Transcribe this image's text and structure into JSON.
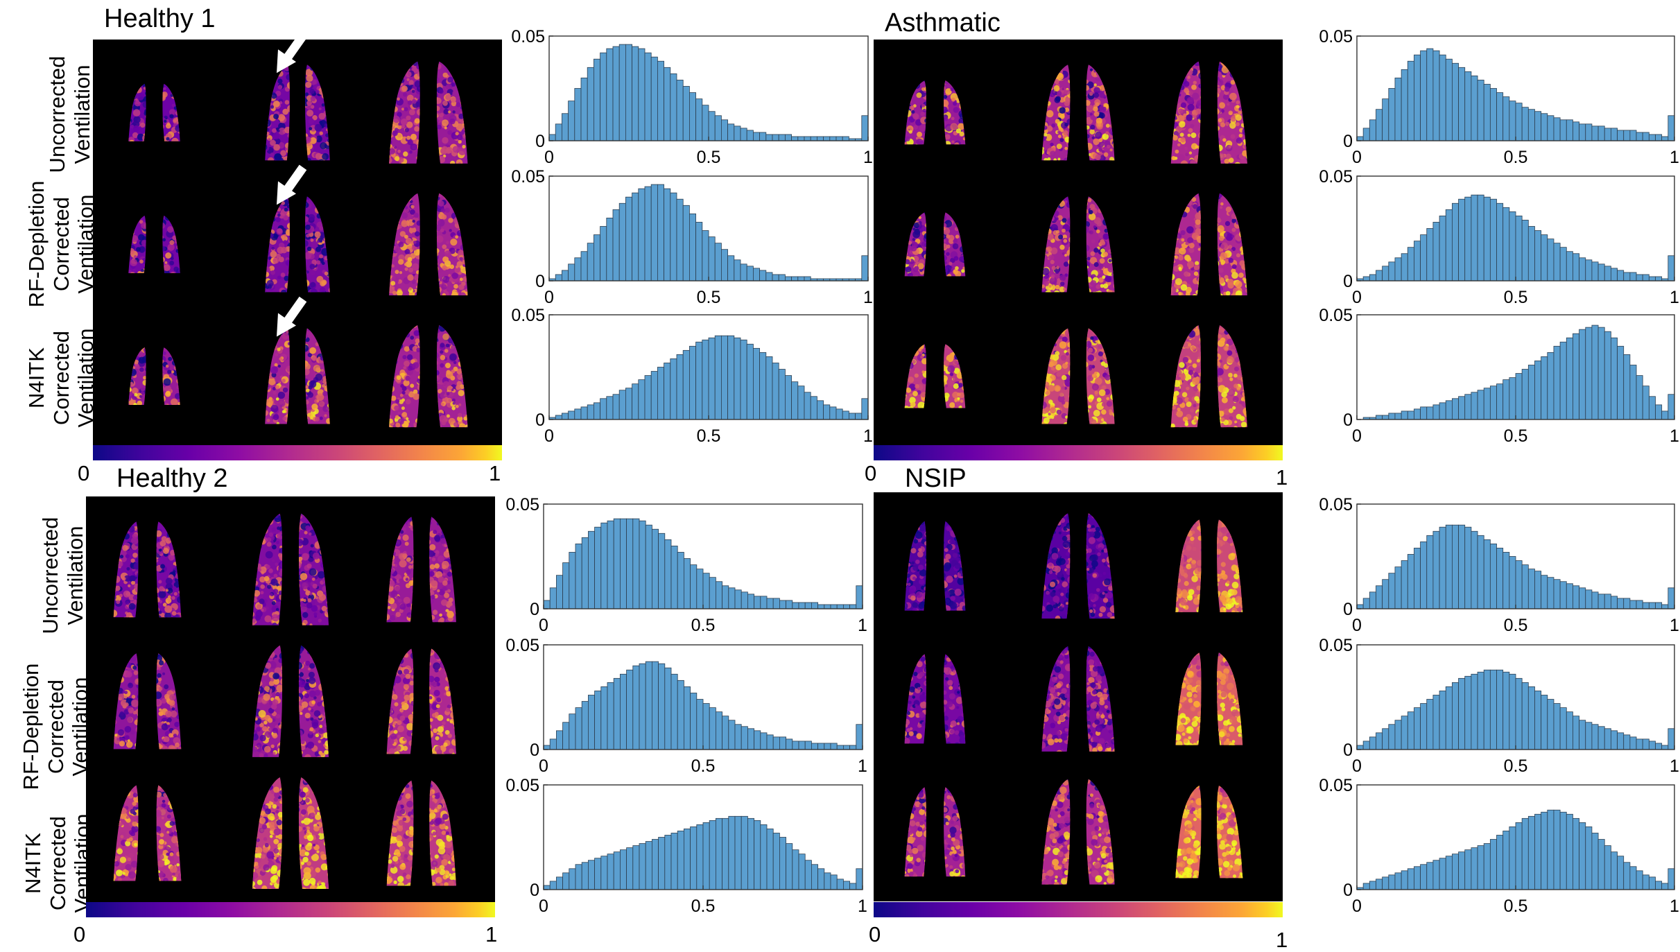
{
  "colormap": [
    "#0d0887",
    "#6a00a8",
    "#b12a90",
    "#e16462",
    "#fca636",
    "#f0f921"
  ],
  "bar_color": "#5b9fd0",
  "row_labels": {
    "uncorrected": [
      "Uncorrected",
      "Ventilation"
    ],
    "rf": [
      "RF-Depletion",
      "Corrected",
      "Ventilation"
    ],
    "n4": [
      "N4ITK",
      "Corrected",
      "Ventilation"
    ]
  },
  "colorbar": {
    "min_label": "0",
    "max_label": "1"
  },
  "panels": [
    {
      "title": "Healthy 1"
    },
    {
      "title": "Asthmatic"
    },
    {
      "title": "Healthy 2"
    },
    {
      "title": "NSIP"
    }
  ],
  "chart_data": [
    {
      "type": "bar",
      "panel": "Healthy 1",
      "row": "Uncorrected",
      "xticks": [
        "0",
        "0.5",
        "1"
      ],
      "yticks": [
        "0",
        "0.05"
      ],
      "xlim": [
        0,
        1
      ],
      "ylim": [
        0,
        0.05
      ],
      "values": [
        0.003,
        0.008,
        0.013,
        0.019,
        0.025,
        0.03,
        0.035,
        0.039,
        0.042,
        0.044,
        0.045,
        0.046,
        0.046,
        0.045,
        0.044,
        0.042,
        0.04,
        0.038,
        0.035,
        0.032,
        0.029,
        0.026,
        0.023,
        0.02,
        0.017,
        0.014,
        0.012,
        0.01,
        0.008,
        0.007,
        0.006,
        0.005,
        0.004,
        0.004,
        0.003,
        0.003,
        0.003,
        0.003,
        0.002,
        0.002,
        0.002,
        0.002,
        0.002,
        0.002,
        0.002,
        0.002,
        0.002,
        0.001,
        0.001,
        0.012
      ]
    },
    {
      "type": "bar",
      "panel": "Healthy 1",
      "row": "RF-Depletion Corrected",
      "xticks": [
        "0",
        "0.5",
        "1"
      ],
      "yticks": [
        "0",
        "0.05"
      ],
      "xlim": [
        0,
        1
      ],
      "ylim": [
        0,
        0.05
      ],
      "values": [
        0.001,
        0.003,
        0.005,
        0.008,
        0.011,
        0.014,
        0.018,
        0.022,
        0.026,
        0.03,
        0.034,
        0.037,
        0.04,
        0.042,
        0.044,
        0.045,
        0.046,
        0.046,
        0.044,
        0.042,
        0.039,
        0.036,
        0.032,
        0.028,
        0.024,
        0.021,
        0.018,
        0.015,
        0.012,
        0.01,
        0.008,
        0.007,
        0.006,
        0.005,
        0.004,
        0.003,
        0.003,
        0.002,
        0.002,
        0.002,
        0.002,
        0.001,
        0.001,
        0.001,
        0.001,
        0.001,
        0.001,
        0.001,
        0.001,
        0.012
      ]
    },
    {
      "type": "bar",
      "panel": "Healthy 1",
      "row": "N4ITK Corrected",
      "xticks": [
        "0",
        "0.5",
        "1"
      ],
      "yticks": [
        "0",
        "0.05"
      ],
      "xlim": [
        0,
        1
      ],
      "ylim": [
        0,
        0.05
      ],
      "values": [
        0.001,
        0.002,
        0.003,
        0.004,
        0.005,
        0.006,
        0.007,
        0.008,
        0.01,
        0.011,
        0.012,
        0.014,
        0.015,
        0.017,
        0.019,
        0.021,
        0.023,
        0.025,
        0.027,
        0.029,
        0.031,
        0.033,
        0.035,
        0.037,
        0.038,
        0.039,
        0.04,
        0.04,
        0.04,
        0.039,
        0.038,
        0.036,
        0.034,
        0.032,
        0.03,
        0.027,
        0.024,
        0.021,
        0.018,
        0.016,
        0.013,
        0.011,
        0.009,
        0.007,
        0.006,
        0.005,
        0.004,
        0.003,
        0.003,
        0.01
      ]
    },
    {
      "type": "bar",
      "panel": "Asthmatic",
      "row": "Uncorrected",
      "xticks": [
        "0",
        "0.5",
        "1"
      ],
      "yticks": [
        "0",
        "0.05"
      ],
      "xlim": [
        0,
        1
      ],
      "ylim": [
        0,
        0.05
      ],
      "values": [
        0.002,
        0.006,
        0.01,
        0.015,
        0.02,
        0.025,
        0.03,
        0.034,
        0.038,
        0.041,
        0.043,
        0.044,
        0.043,
        0.041,
        0.039,
        0.037,
        0.035,
        0.033,
        0.031,
        0.029,
        0.027,
        0.025,
        0.023,
        0.021,
        0.019,
        0.018,
        0.016,
        0.015,
        0.014,
        0.013,
        0.012,
        0.011,
        0.01,
        0.01,
        0.009,
        0.008,
        0.008,
        0.007,
        0.007,
        0.006,
        0.006,
        0.005,
        0.005,
        0.005,
        0.004,
        0.004,
        0.003,
        0.003,
        0.002,
        0.012
      ]
    },
    {
      "type": "bar",
      "panel": "Asthmatic",
      "row": "RF-Depletion Corrected",
      "xticks": [
        "0",
        "0.5",
        "1"
      ],
      "yticks": [
        "0",
        "0.05"
      ],
      "xlim": [
        0,
        1
      ],
      "ylim": [
        0,
        0.05
      ],
      "values": [
        0.001,
        0.002,
        0.003,
        0.005,
        0.007,
        0.009,
        0.011,
        0.013,
        0.016,
        0.019,
        0.022,
        0.025,
        0.028,
        0.031,
        0.034,
        0.037,
        0.039,
        0.04,
        0.041,
        0.041,
        0.04,
        0.039,
        0.037,
        0.035,
        0.033,
        0.031,
        0.029,
        0.026,
        0.024,
        0.022,
        0.02,
        0.018,
        0.016,
        0.014,
        0.013,
        0.011,
        0.01,
        0.009,
        0.008,
        0.007,
        0.006,
        0.005,
        0.004,
        0.004,
        0.003,
        0.003,
        0.002,
        0.002,
        0.001,
        0.012
      ]
    },
    {
      "type": "bar",
      "panel": "Asthmatic",
      "row": "N4ITK Corrected",
      "xticks": [
        "0",
        "0.5",
        "1"
      ],
      "yticks": [
        "0",
        "0.05"
      ],
      "xlim": [
        0,
        1
      ],
      "ylim": [
        0,
        0.05
      ],
      "values": [
        0.0,
        0.001,
        0.001,
        0.002,
        0.002,
        0.003,
        0.003,
        0.004,
        0.004,
        0.005,
        0.006,
        0.006,
        0.007,
        0.008,
        0.009,
        0.01,
        0.011,
        0.012,
        0.013,
        0.014,
        0.015,
        0.016,
        0.017,
        0.019,
        0.02,
        0.022,
        0.024,
        0.026,
        0.028,
        0.03,
        0.032,
        0.035,
        0.037,
        0.039,
        0.041,
        0.043,
        0.044,
        0.045,
        0.044,
        0.042,
        0.039,
        0.035,
        0.031,
        0.026,
        0.021,
        0.016,
        0.011,
        0.007,
        0.004,
        0.012
      ]
    },
    {
      "type": "bar",
      "panel": "Healthy 2",
      "row": "Uncorrected",
      "xticks": [
        "0",
        "0.5",
        "1"
      ],
      "yticks": [
        "0",
        "0.05"
      ],
      "xlim": [
        0,
        1
      ],
      "ylim": [
        0,
        0.05
      ],
      "values": [
        0.004,
        0.01,
        0.016,
        0.022,
        0.027,
        0.031,
        0.034,
        0.037,
        0.039,
        0.041,
        0.042,
        0.043,
        0.043,
        0.043,
        0.043,
        0.042,
        0.04,
        0.038,
        0.036,
        0.033,
        0.03,
        0.027,
        0.024,
        0.021,
        0.019,
        0.017,
        0.015,
        0.013,
        0.011,
        0.01,
        0.009,
        0.008,
        0.007,
        0.006,
        0.006,
        0.005,
        0.005,
        0.004,
        0.004,
        0.003,
        0.003,
        0.003,
        0.003,
        0.002,
        0.002,
        0.002,
        0.002,
        0.002,
        0.002,
        0.011
      ]
    },
    {
      "type": "bar",
      "panel": "Healthy 2",
      "row": "RF-Depletion Corrected",
      "xticks": [
        "0",
        "0.5",
        "1"
      ],
      "yticks": [
        "0",
        "0.05"
      ],
      "xlim": [
        0,
        1
      ],
      "ylim": [
        0,
        0.05
      ],
      "values": [
        0.002,
        0.005,
        0.009,
        0.013,
        0.017,
        0.02,
        0.023,
        0.026,
        0.028,
        0.03,
        0.032,
        0.034,
        0.036,
        0.038,
        0.04,
        0.041,
        0.042,
        0.042,
        0.041,
        0.039,
        0.036,
        0.033,
        0.03,
        0.027,
        0.024,
        0.022,
        0.02,
        0.018,
        0.016,
        0.014,
        0.012,
        0.011,
        0.01,
        0.009,
        0.008,
        0.007,
        0.006,
        0.006,
        0.005,
        0.004,
        0.004,
        0.004,
        0.003,
        0.003,
        0.003,
        0.003,
        0.002,
        0.002,
        0.002,
        0.012
      ]
    },
    {
      "type": "bar",
      "panel": "Healthy 2",
      "row": "N4ITK Corrected",
      "xticks": [
        "0",
        "0.5",
        "1"
      ],
      "yticks": [
        "0",
        "0.05"
      ],
      "xlim": [
        0,
        1
      ],
      "ylim": [
        0,
        0.05
      ],
      "values": [
        0.002,
        0.004,
        0.006,
        0.008,
        0.01,
        0.012,
        0.013,
        0.014,
        0.015,
        0.016,
        0.017,
        0.018,
        0.019,
        0.02,
        0.021,
        0.022,
        0.023,
        0.024,
        0.025,
        0.026,
        0.027,
        0.028,
        0.029,
        0.03,
        0.031,
        0.032,
        0.033,
        0.034,
        0.034,
        0.035,
        0.035,
        0.035,
        0.034,
        0.033,
        0.031,
        0.029,
        0.027,
        0.025,
        0.022,
        0.019,
        0.017,
        0.014,
        0.012,
        0.01,
        0.008,
        0.007,
        0.005,
        0.004,
        0.003,
        0.01
      ]
    },
    {
      "type": "bar",
      "panel": "NSIP",
      "row": "Uncorrected",
      "xticks": [
        "0",
        "0.5",
        "1"
      ],
      "yticks": [
        "0",
        "0.05"
      ],
      "xlim": [
        0,
        1
      ],
      "ylim": [
        0,
        0.05
      ],
      "values": [
        0.002,
        0.005,
        0.008,
        0.011,
        0.014,
        0.017,
        0.02,
        0.023,
        0.026,
        0.029,
        0.032,
        0.035,
        0.037,
        0.039,
        0.04,
        0.04,
        0.04,
        0.039,
        0.037,
        0.035,
        0.033,
        0.031,
        0.029,
        0.027,
        0.025,
        0.023,
        0.021,
        0.019,
        0.018,
        0.016,
        0.015,
        0.014,
        0.013,
        0.012,
        0.011,
        0.01,
        0.009,
        0.008,
        0.007,
        0.007,
        0.006,
        0.005,
        0.005,
        0.004,
        0.004,
        0.003,
        0.003,
        0.003,
        0.002,
        0.01
      ]
    },
    {
      "type": "bar",
      "panel": "NSIP",
      "row": "RF-Depletion Corrected",
      "xticks": [
        "0",
        "0.5",
        "1"
      ],
      "yticks": [
        "0",
        "0.05"
      ],
      "xlim": [
        0,
        1
      ],
      "ylim": [
        0,
        0.05
      ],
      "values": [
        0.002,
        0.004,
        0.006,
        0.008,
        0.01,
        0.012,
        0.014,
        0.016,
        0.018,
        0.02,
        0.022,
        0.024,
        0.026,
        0.028,
        0.03,
        0.032,
        0.034,
        0.035,
        0.036,
        0.037,
        0.038,
        0.038,
        0.038,
        0.037,
        0.036,
        0.034,
        0.032,
        0.03,
        0.028,
        0.026,
        0.024,
        0.022,
        0.02,
        0.018,
        0.016,
        0.014,
        0.013,
        0.012,
        0.011,
        0.01,
        0.009,
        0.008,
        0.007,
        0.006,
        0.005,
        0.005,
        0.004,
        0.003,
        0.002,
        0.01
      ]
    },
    {
      "type": "bar",
      "panel": "NSIP",
      "row": "N4ITK Corrected",
      "xticks": [
        "0",
        "0.5",
        "1"
      ],
      "yticks": [
        "0",
        "0.05"
      ],
      "xlim": [
        0,
        1
      ],
      "ylim": [
        0,
        0.05
      ],
      "values": [
        0.001,
        0.003,
        0.004,
        0.005,
        0.006,
        0.007,
        0.008,
        0.009,
        0.01,
        0.011,
        0.012,
        0.013,
        0.014,
        0.015,
        0.016,
        0.017,
        0.018,
        0.019,
        0.02,
        0.021,
        0.022,
        0.024,
        0.026,
        0.028,
        0.03,
        0.032,
        0.034,
        0.035,
        0.036,
        0.037,
        0.038,
        0.038,
        0.037,
        0.036,
        0.034,
        0.032,
        0.03,
        0.027,
        0.024,
        0.021,
        0.018,
        0.016,
        0.013,
        0.011,
        0.009,
        0.007,
        0.006,
        0.004,
        0.003,
        0.01
      ]
    }
  ]
}
